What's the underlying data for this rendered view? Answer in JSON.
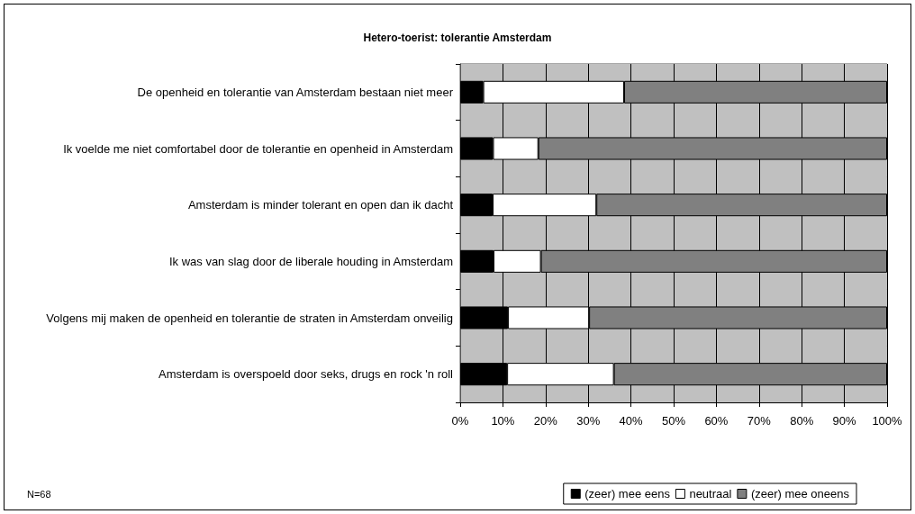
{
  "chart_data": {
    "type": "bar",
    "orientation": "horizontal",
    "stacked": true,
    "title": "Hetero-toerist: tolerantie Amsterdam",
    "categories": [
      "De openheid en tolerantie van Amsterdam bestaan niet meer",
      "Ik voelde me niet comfortabel door de tolerantie en openheid in Amsterdam",
      "Amsterdam is minder tolerant en open dan ik dacht",
      "Ik was van slag door de liberale houding in Amsterdam",
      "Volgens mij maken de openheid en tolerantie de straten in Amsterdam onveilig",
      "Amsterdam is overspoeld door seks, drugs en rock 'n roll"
    ],
    "series": [
      {
        "name": "(zeer) mee eens",
        "color": "#000000",
        "values": [
          5.4,
          7.7,
          7.6,
          7.8,
          11.2,
          11.0
        ]
      },
      {
        "name": "neutraal",
        "color": "#ffffff",
        "values": [
          33.0,
          10.6,
          24.3,
          11.1,
          19.0,
          25.0
        ]
      },
      {
        "name": "(zeer) mee oneens",
        "color": "#808080",
        "values": [
          61.6,
          81.7,
          68.1,
          81.1,
          69.8,
          64.0
        ]
      }
    ],
    "xlim": [
      0,
      100
    ],
    "xticks": [
      {
        "value": 0,
        "label": "0%"
      },
      {
        "value": 10,
        "label": "10%"
      },
      {
        "value": 20,
        "label": "20%"
      },
      {
        "value": 30,
        "label": "30%"
      },
      {
        "value": 40,
        "label": "40%"
      },
      {
        "value": 50,
        "label": "50%"
      },
      {
        "value": 60,
        "label": "60%"
      },
      {
        "value": 70,
        "label": "70%"
      },
      {
        "value": 80,
        "label": "80%"
      },
      {
        "value": 90,
        "label": "90%"
      },
      {
        "value": 100,
        "label": "100%"
      }
    ],
    "grid": "x",
    "legend": "bottom right",
    "annotations": [
      "N=68"
    ]
  }
}
